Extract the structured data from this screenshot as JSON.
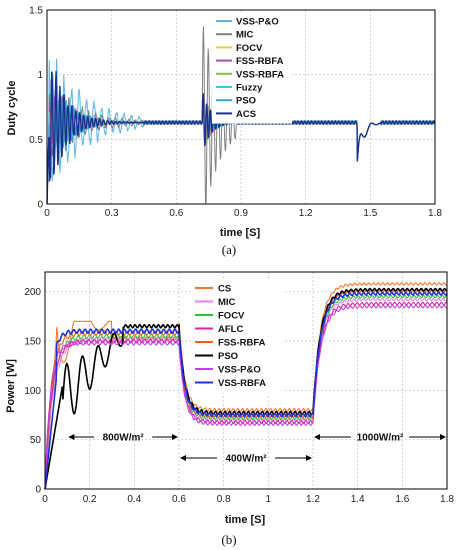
{
  "chart_data": [
    {
      "type": "line",
      "caption": "(a)",
      "xlabel": "time [S]",
      "ylabel": "Duty cycle",
      "xlim": [
        0,
        1.8
      ],
      "ylim": [
        0,
        1.5
      ],
      "xticks": [
        "0",
        "0.3",
        "0.6",
        "0.9",
        "1.2",
        "1.5",
        "1.8"
      ],
      "yticks": [
        "0",
        "0.5",
        "1",
        "1.5"
      ],
      "grid": true,
      "legend_position": "top-right",
      "steady_value": 0.63,
      "series": [
        {
          "name": "VSS-P&O",
          "color": "#5bb8e8"
        },
        {
          "name": "MIC",
          "color": "#808080"
        },
        {
          "name": "FOCV",
          "color": "#e8d04a"
        },
        {
          "name": "FSS-RBFA",
          "color": "#b04ab8"
        },
        {
          "name": "VSS-RBFA",
          "color": "#8cb84a"
        },
        {
          "name": "Fuzzy",
          "color": "#47c2f0"
        },
        {
          "name": "PSO",
          "color": "#30a6d8"
        },
        {
          "name": "ACS",
          "color": "#1c2f8a"
        }
      ]
    },
    {
      "type": "line",
      "caption": "(b)",
      "xlabel": "time [S]",
      "ylabel": "Power [W]",
      "xlim": [
        0,
        1.8
      ],
      "ylim": [
        0,
        220
      ],
      "xticks": [
        "0",
        "0.2",
        "0.4",
        "0.6",
        "0.8",
        "1",
        "1.2",
        "1.4",
        "1.6",
        "1.8"
      ],
      "yticks": [
        "0",
        "50",
        "100",
        "150",
        "200"
      ],
      "grid": true,
      "legend_position": "top-center",
      "irradiance_segments": [
        {
          "label": "800W/m²",
          "start": 0.1,
          "end": 0.6
        },
        {
          "label": "400W/m²",
          "start": 0.6,
          "end": 1.2
        },
        {
          "label": "1000W/m²",
          "start": 1.2,
          "end": 1.8
        }
      ],
      "series": [
        {
          "name": "CS",
          "color": "#f07830",
          "levels": [
            170,
            80,
            208
          ]
        },
        {
          "name": "MIC",
          "color": "#e080f0",
          "levels": [
            152,
            70,
            192
          ]
        },
        {
          "name": "FOCV",
          "color": "#30c030",
          "levels": [
            155,
            72,
            195
          ]
        },
        {
          "name": "AFLC",
          "color": "#e020a0",
          "levels": [
            150,
            68,
            188
          ]
        },
        {
          "name": "FSS-RBFA",
          "color": "#e86018",
          "levels": [
            158,
            74,
            200
          ]
        },
        {
          "name": "PSO",
          "color": "#000000",
          "levels": [
            165,
            77,
            202
          ]
        },
        {
          "name": "VSS-P&O",
          "color": "#c040e0",
          "levels": [
            148,
            66,
            185
          ]
        },
        {
          "name": "VSS-RBFA",
          "color": "#2030e0",
          "levels": [
            160,
            75,
            198
          ]
        }
      ]
    }
  ]
}
